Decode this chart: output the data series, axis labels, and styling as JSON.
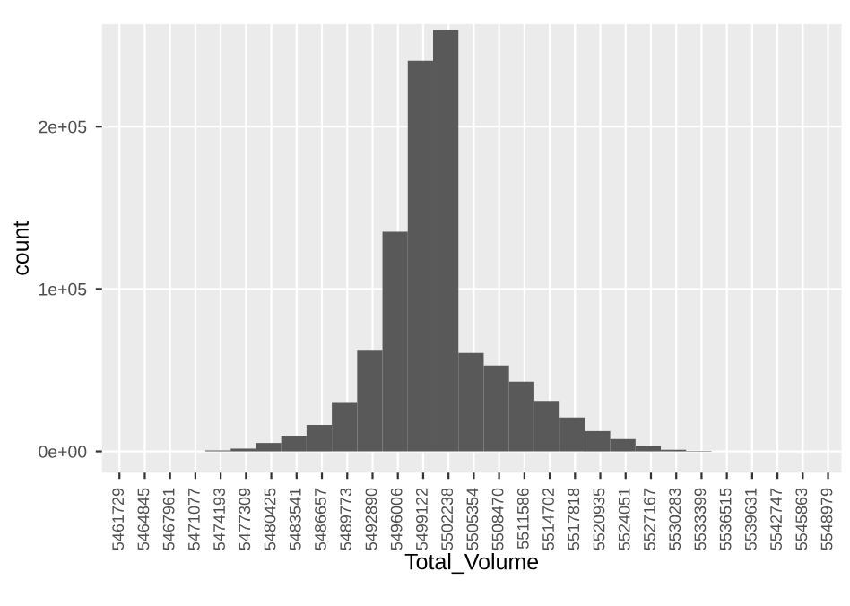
{
  "chart_data": {
    "type": "histogram",
    "xlabel": "Total_Volume",
    "ylabel": "count",
    "color": "#595959",
    "bins": [
      5472300,
      5475416,
      5478532,
      5481648,
      5484764,
      5487880,
      5490996,
      5494112,
      5497228,
      5500344,
      5503460,
      5506576,
      5509692,
      5512808,
      5515924,
      5519040,
      5522156,
      5525272,
      5528388,
      5531504,
      5534620
    ],
    "values": [
      600,
      1700,
      5200,
      9700,
      16300,
      30400,
      62600,
      135300,
      240500,
      259500,
      60600,
      52900,
      42900,
      31100,
      20800,
      12500,
      7600,
      3500,
      1000,
      300
    ],
    "xlim": [
      5459580,
      5550630
    ],
    "xticks": [
      5461729,
      5464845,
      5467961,
      5471077,
      5474193,
      5477309,
      5480425,
      5483541,
      5486657,
      5489773,
      5492890,
      5496006,
      5499122,
      5502238,
      5505354,
      5508470,
      5511586,
      5514702,
      5517818,
      5520935,
      5524051,
      5527167,
      5530283,
      5533399,
      5536515,
      5539631,
      5542747,
      5545863,
      5548979
    ],
    "ylim": [
      -13100,
      263000
    ],
    "yticks": [
      {
        "value": 0,
        "label": "0e+00"
      },
      {
        "value": 100000,
        "label": "1e+05"
      },
      {
        "value": 200000,
        "label": "2e+05"
      }
    ],
    "grid": true
  }
}
